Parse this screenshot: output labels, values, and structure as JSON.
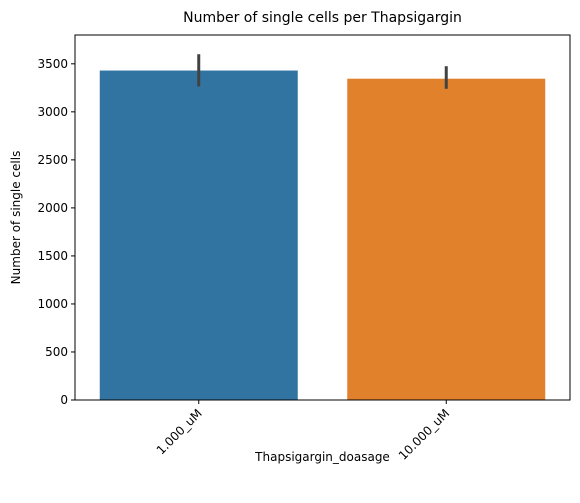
{
  "chart_data": {
    "type": "bar",
    "title": "Number of single cells per Thapsigargin",
    "xlabel": "Thapsigargin_doasage",
    "ylabel": "Number of single cells",
    "categories": [
      "1.000_uM",
      "10.000_uM"
    ],
    "values": [
      3430,
      3345
    ],
    "error_low": [
      3265,
      3240
    ],
    "error_high": [
      3600,
      3475
    ],
    "colors": [
      "#3274a1",
      "#e1812c"
    ],
    "ylim": [
      0,
      3800
    ],
    "yticks": [
      0,
      500,
      1000,
      1500,
      2000,
      2500,
      3000,
      3500
    ],
    "xtick_rotation": 45,
    "grid": false
  }
}
